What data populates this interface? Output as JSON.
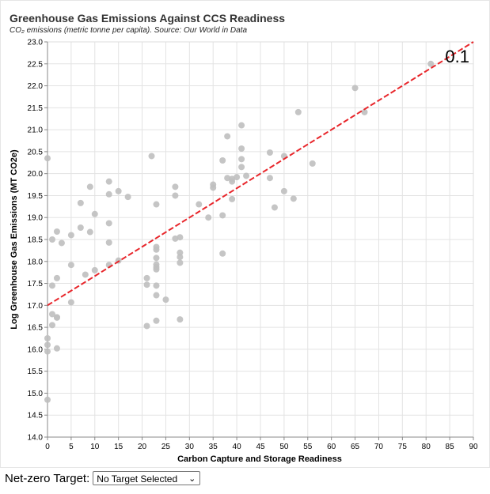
{
  "control": {
    "label": "Net-zero Target:",
    "selected": "No Target Selected",
    "chevron_icon": "chevron-down-icon"
  },
  "chart_data": {
    "type": "scatter",
    "title": "Greenhouse Gas Emissions Against CCS Readiness",
    "subtitle": "CO₂ emissions (metric tonne per capita). Source: Our World in Data",
    "xlabel": "Carbon Capture and Storage Readiness",
    "ylabel": "Log Greenhouse Gas Emissions (MT CO2e)",
    "xlim": [
      0,
      90
    ],
    "ylim": [
      14.0,
      23.0
    ],
    "x_ticks": [
      0,
      5,
      10,
      15,
      20,
      25,
      30,
      35,
      40,
      45,
      50,
      55,
      60,
      65,
      70,
      75,
      80,
      85,
      90
    ],
    "y_ticks": [
      "14.0",
      "14.5",
      "15.0",
      "15.5",
      "16.0",
      "16.5",
      "17.0",
      "17.5",
      "18.0",
      "18.5",
      "19.0",
      "19.5",
      "20.0",
      "20.5",
      "21.0",
      "21.5",
      "22.0",
      "22.5",
      "23.0"
    ],
    "grid": true,
    "annotation": "0.1",
    "point_color": "#bfbfbf",
    "trend_color": "#e8262b",
    "trend_line": {
      "x": [
        0,
        90
      ],
      "y": [
        17.0,
        23.0
      ]
    },
    "points": [
      {
        "x": 0,
        "y": 20.35
      },
      {
        "x": 0,
        "y": 16.25
      },
      {
        "x": 0,
        "y": 16.1
      },
      {
        "x": 0,
        "y": 15.95
      },
      {
        "x": 0,
        "y": 14.85
      },
      {
        "x": 1,
        "y": 18.5
      },
      {
        "x": 1,
        "y": 17.45
      },
      {
        "x": 1,
        "y": 16.8
      },
      {
        "x": 1,
        "y": 16.55
      },
      {
        "x": 2,
        "y": 18.68
      },
      {
        "x": 2,
        "y": 17.62
      },
      {
        "x": 2,
        "y": 16.73
      },
      {
        "x": 2,
        "y": 16.72
      },
      {
        "x": 2,
        "y": 16.02
      },
      {
        "x": 3,
        "y": 18.42
      },
      {
        "x": 5,
        "y": 18.6
      },
      {
        "x": 5,
        "y": 17.92
      },
      {
        "x": 5,
        "y": 17.07
      },
      {
        "x": 7,
        "y": 19.33
      },
      {
        "x": 7,
        "y": 18.77
      },
      {
        "x": 8,
        "y": 17.7
      },
      {
        "x": 9,
        "y": 19.7
      },
      {
        "x": 9,
        "y": 18.67
      },
      {
        "x": 10,
        "y": 19.08
      },
      {
        "x": 10,
        "y": 17.8
      },
      {
        "x": 13,
        "y": 19.82
      },
      {
        "x": 13,
        "y": 19.53
      },
      {
        "x": 13,
        "y": 18.87
      },
      {
        "x": 13,
        "y": 18.43
      },
      {
        "x": 13,
        "y": 17.92
      },
      {
        "x": 15,
        "y": 19.6
      },
      {
        "x": 15,
        "y": 18.02
      },
      {
        "x": 17,
        "y": 19.47
      },
      {
        "x": 21,
        "y": 17.62
      },
      {
        "x": 21,
        "y": 17.47
      },
      {
        "x": 21,
        "y": 16.53
      },
      {
        "x": 22,
        "y": 20.4
      },
      {
        "x": 23,
        "y": 19.3
      },
      {
        "x": 23,
        "y": 18.33
      },
      {
        "x": 23,
        "y": 18.27
      },
      {
        "x": 23,
        "y": 18.08
      },
      {
        "x": 23,
        "y": 17.93
      },
      {
        "x": 23,
        "y": 17.87
      },
      {
        "x": 23,
        "y": 17.82
      },
      {
        "x": 23,
        "y": 17.45
      },
      {
        "x": 23,
        "y": 17.23
      },
      {
        "x": 23,
        "y": 16.65
      },
      {
        "x": 25,
        "y": 17.13
      },
      {
        "x": 27,
        "y": 19.7
      },
      {
        "x": 27,
        "y": 19.5
      },
      {
        "x": 27,
        "y": 18.52
      },
      {
        "x": 28,
        "y": 18.55
      },
      {
        "x": 28,
        "y": 18.2
      },
      {
        "x": 28,
        "y": 18.1
      },
      {
        "x": 28,
        "y": 17.97
      },
      {
        "x": 28,
        "y": 16.68
      },
      {
        "x": 32,
        "y": 19.3
      },
      {
        "x": 34,
        "y": 19.0
      },
      {
        "x": 35,
        "y": 19.75
      },
      {
        "x": 35,
        "y": 19.68
      },
      {
        "x": 37,
        "y": 20.3
      },
      {
        "x": 37,
        "y": 19.05
      },
      {
        "x": 37,
        "y": 18.18
      },
      {
        "x": 38,
        "y": 20.85
      },
      {
        "x": 38,
        "y": 19.9
      },
      {
        "x": 39,
        "y": 19.88
      },
      {
        "x": 39,
        "y": 19.82
      },
      {
        "x": 39,
        "y": 19.42
      },
      {
        "x": 40,
        "y": 19.92
      },
      {
        "x": 41,
        "y": 21.1
      },
      {
        "x": 41,
        "y": 20.57
      },
      {
        "x": 41,
        "y": 20.33
      },
      {
        "x": 41,
        "y": 20.15
      },
      {
        "x": 42,
        "y": 19.95
      },
      {
        "x": 47,
        "y": 20.48
      },
      {
        "x": 47,
        "y": 19.9
      },
      {
        "x": 48,
        "y": 19.23
      },
      {
        "x": 50,
        "y": 20.4
      },
      {
        "x": 50,
        "y": 19.6
      },
      {
        "x": 52,
        "y": 19.43
      },
      {
        "x": 53,
        "y": 21.4
      },
      {
        "x": 56,
        "y": 20.23
      },
      {
        "x": 65,
        "y": 21.95
      },
      {
        "x": 67,
        "y": 21.4
      },
      {
        "x": 81,
        "y": 22.5
      }
    ]
  }
}
